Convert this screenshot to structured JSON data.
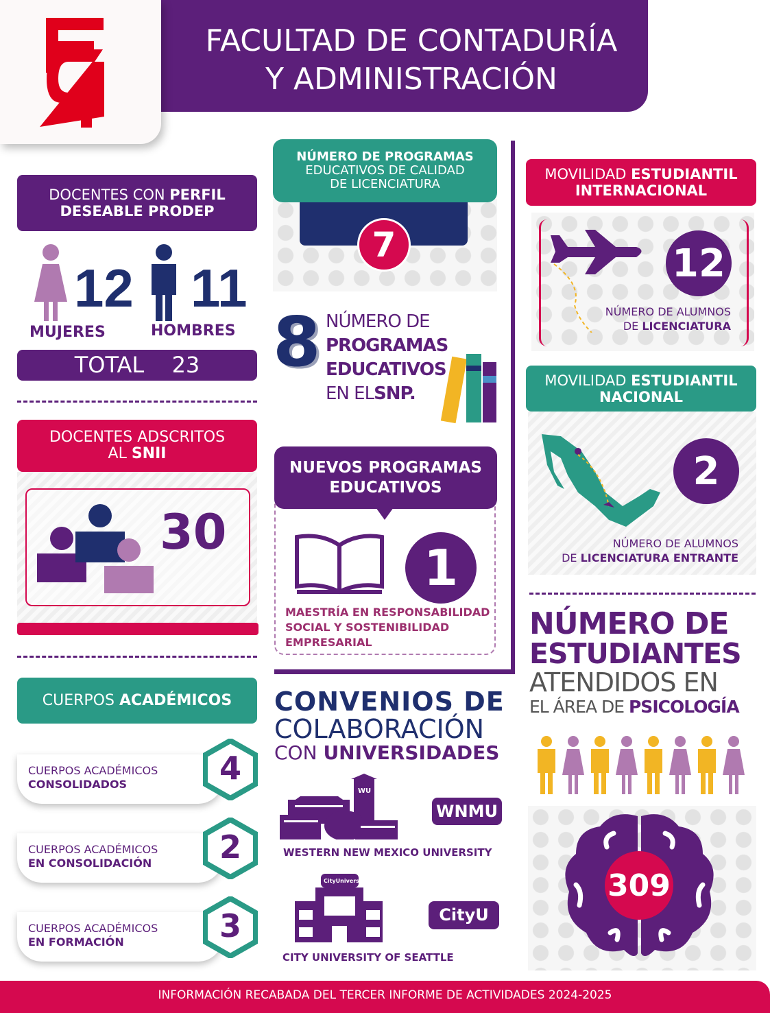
{
  "header": {
    "logo_text": "FCA",
    "title_line1": "FACULTAD DE CONTADURÍA",
    "title_line2": "Y ADMINISTRACIÓN"
  },
  "prodep": {
    "title_a": "DOCENTES CON ",
    "title_b": "PERFIL",
    "title_c": "DESEABLE PRODEP",
    "women_count": "12",
    "women_label": "MUJERES",
    "men_count": "11",
    "men_label": "HOMBRES",
    "total_label": "TOTAL",
    "total_value": "23"
  },
  "snii": {
    "title_a": "DOCENTES ADSCRITOS",
    "title_b": "AL ",
    "title_c": "SNII",
    "count": "30"
  },
  "cuerpos": {
    "title_a": "CUERPOS ",
    "title_b": "ACADÉMICOS",
    "items": [
      {
        "line1": "CUERPOS ACADÉMICOS",
        "line2": "CONSOLIDADOS",
        "value": "4"
      },
      {
        "line1": "CUERPOS ACADÉMICOS",
        "line2": "EN CONSOLIDACIÓN",
        "value": "2"
      },
      {
        "line1": "CUERPOS ACADÉMICOS",
        "line2": "EN FORMACIÓN",
        "value": "3"
      }
    ]
  },
  "calidad": {
    "line1": "NÚMERO DE PROGRAMAS",
    "line2": "EDUCATIVOS DE CALIDAD",
    "line3": "DE LICENCIATURA",
    "value": "7"
  },
  "snp": {
    "value": "8",
    "line1": "NÚMERO DE",
    "line2": "PROGRAMAS",
    "line3": "EDUCATIVOS",
    "line4a": "EN EL",
    "line4b": "SNP."
  },
  "nuevos": {
    "title_line1": "NUEVOS PROGRAMAS",
    "title_line2": "EDUCATIVOS",
    "value": "1",
    "desc_line1": "MAESTRÍA EN RESPONSABILIDAD",
    "desc_line2": "SOCIAL Y SOSTENIBILIDAD",
    "desc_line3": "EMPRESARIAL"
  },
  "convenios": {
    "line1": "CONVENIOS DE",
    "line2": "COLABORACIÓN",
    "line3a": "CON ",
    "line3b": "UNIVERSIDADES",
    "universities": [
      {
        "name": "WESTERN NEW MEXICO UNIVERSITY",
        "badge": "WNMU",
        "building_sign": "WU"
      },
      {
        "name": "CITY UNIVERSITY OF SEATTLE",
        "badge": "CityU",
        "building_sign": "CityUniversity"
      }
    ]
  },
  "mov_int": {
    "title_a": "MOVILIDAD ",
    "title_b": "ESTUDIANTIL",
    "title_c": "INTERNACIONAL",
    "value": "12",
    "desc_a": "NÚMERO DE ALUMNOS",
    "desc_b": "DE ",
    "desc_c": "LICENCIATURA"
  },
  "mov_nac": {
    "title_a": "MOVILIDAD ",
    "title_b": "ESTUDIANTIL",
    "title_c": "NACIONAL",
    "value": "2",
    "desc_a": "NÚMERO DE ALUMNOS",
    "desc_b": "DE ",
    "desc_c": "LICENCIATURA ENTRANTE"
  },
  "psico": {
    "line1": "NÚMERO DE",
    "line2": "ESTUDIANTES",
    "line3": "ATENDIDOS EN",
    "line4a": "EL ÁREA DE ",
    "line4b": "PSICOLOGÍA",
    "value": "309"
  },
  "footer": {
    "text": "INFORMACIÓN RECABADA DEL TERCER INFORME DE ACTIVIDADES 2024-2025"
  },
  "colors": {
    "purple": "#5c1f7a",
    "red": "#d5094f",
    "teal": "#2a9a86",
    "navy": "#1f2f6e",
    "lilac": "#b07ab0",
    "yellow": "#f2b524"
  }
}
